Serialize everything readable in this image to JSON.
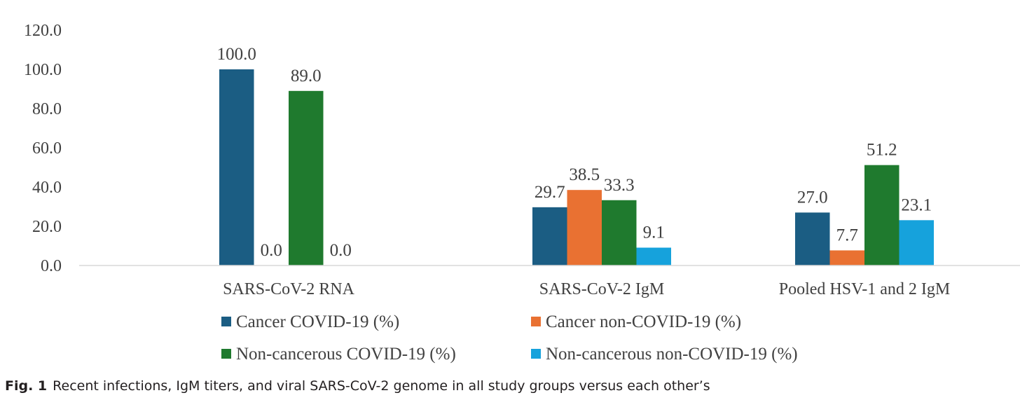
{
  "chart_data": {
    "type": "bar",
    "categories": [
      "SARS-CoV-2 RNA",
      "SARS-CoV-2 IgM",
      "Pooled HSV-1 and 2 IgM"
    ],
    "series": [
      {
        "name": "Cancer COVID-19 (%)",
        "values": [
          100.0,
          29.7,
          27.0
        ],
        "labels": [
          "100.0",
          "29.7",
          "27.0"
        ],
        "color": "#1b5d83"
      },
      {
        "name": "Cancer non-COVID-19 (%)",
        "values": [
          0.0,
          38.5,
          7.7
        ],
        "labels": [
          "0.0",
          "38.5",
          "7.7"
        ],
        "color": "#e97132"
      },
      {
        "name": "Non-cancerous COVID-19 (%)",
        "values": [
          89.0,
          33.3,
          51.2
        ],
        "labels": [
          "89.0",
          "33.3",
          "51.2"
        ],
        "color": "#1f7a2e"
      },
      {
        "name": "Non-cancerous non-COVID-19 (%)",
        "values": [
          0.0,
          9.1,
          23.1
        ],
        "labels": [
          "0.0",
          "9.1",
          "23.1"
        ],
        "color": "#16a2dc"
      }
    ],
    "yticks": [
      "0.0",
      "20.0",
      "40.0",
      "60.0",
      "80.0",
      "100.0",
      "120.0"
    ],
    "ylim": [
      0,
      120
    ],
    "grid": false,
    "legend_position": "bottom"
  },
  "caption": {
    "label": "Fig. 1",
    "text": "Recent infections, IgM titers, and viral SARS-CoV-2 genome in all study groups versus each other’s"
  }
}
